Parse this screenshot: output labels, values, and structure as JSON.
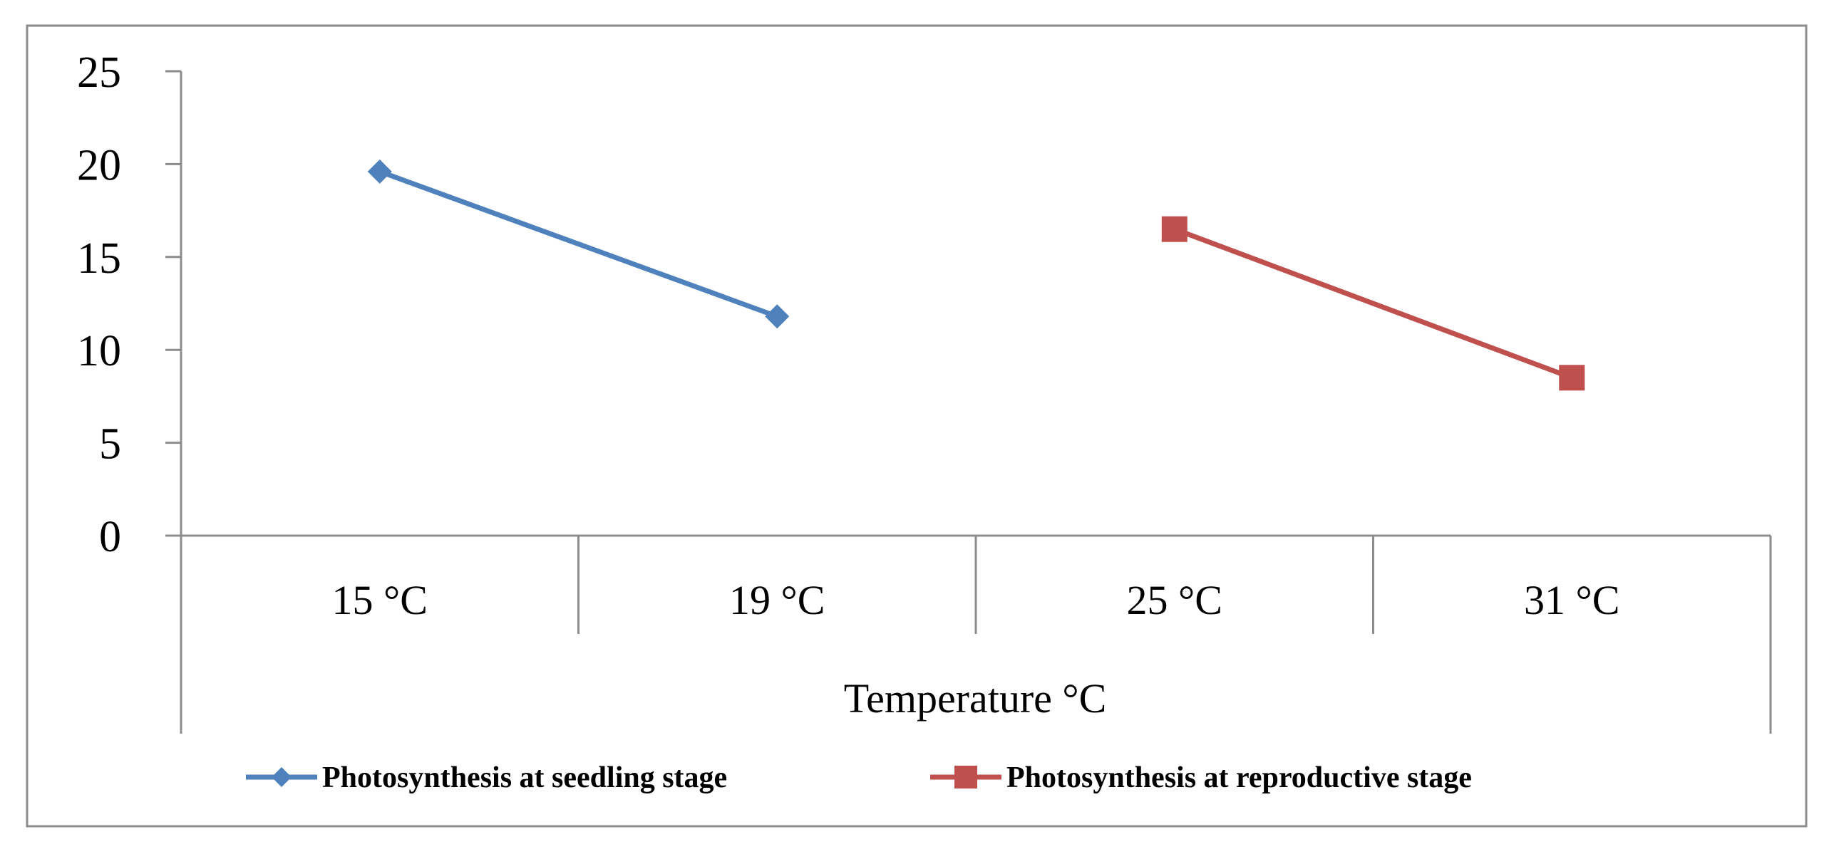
{
  "chart_data": {
    "type": "line",
    "title": "",
    "categories": [
      "15 °C",
      "19 °C",
      "25 °C",
      "31 °C"
    ],
    "series": [
      {
        "name": "Photosynthesis at seedling stage",
        "values": [
          19.6,
          11.8,
          null,
          null
        ],
        "color": "#4F81BD",
        "marker": "diamond"
      },
      {
        "name": "Photosynthesis at reproductive stage",
        "values": [
          null,
          null,
          16.5,
          8.5
        ],
        "color": "#C0504D",
        "marker": "square"
      }
    ],
    "xlabel": "Temperature °C",
    "ylabel": "",
    "ylim": [
      0,
      25
    ],
    "yticks": [
      0,
      5,
      10,
      15,
      20,
      25
    ],
    "grid": false,
    "legend_position": "bottom"
  }
}
